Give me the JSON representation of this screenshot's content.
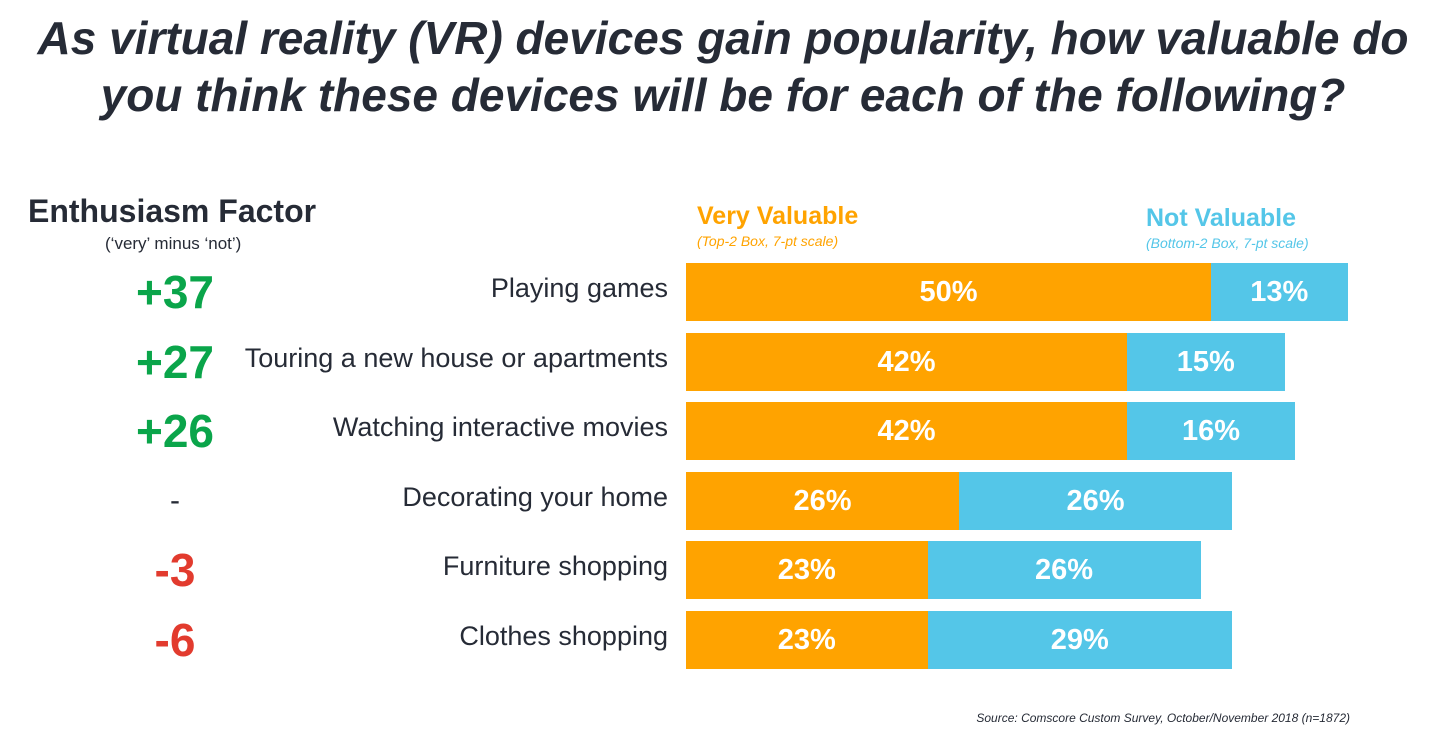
{
  "title": "As virtual reality (VR) devices gain popularity, how valuable do you think these devices will be for each of the following?",
  "enthusiasm": {
    "title": "Enthusiasm Factor",
    "subtitle": "(‘very’ minus ‘not’)"
  },
  "legend": {
    "very": {
      "label": "Very Valuable",
      "note": "(Top-2 Box, 7-pt scale)"
    },
    "not": {
      "label": "Not Valuable",
      "note": "(Bottom-2 Box, 7-pt scale)"
    }
  },
  "source": "Source: Comscore Custom Survey, October/November 2018 (n=1872)",
  "colors": {
    "very": "#ffa300",
    "not": "#54c6e8",
    "positive": "#0aa54a",
    "negative": "#e23b2e",
    "neutral": "#262b36"
  },
  "chart_data": {
    "type": "bar",
    "orientation": "horizontal",
    "stacked": true,
    "categories": [
      "Playing games",
      "Touring a new house or apartments",
      "Watching interactive movies",
      "Decorating your home",
      "Furniture shopping",
      "Clothes shopping"
    ],
    "series": [
      {
        "name": "Very Valuable",
        "values": [
          50,
          42,
          42,
          26,
          23,
          23
        ],
        "labels": [
          "50%",
          "42%",
          "42%",
          "26%",
          "23%",
          "23%"
        ]
      },
      {
        "name": "Not Valuable",
        "values": [
          13,
          15,
          16,
          26,
          26,
          29
        ],
        "labels": [
          "13%",
          "15%",
          "16%",
          "26%",
          "26%",
          "29%"
        ]
      }
    ],
    "enthusiasm_factor": [
      "+37",
      "+27",
      "+26",
      "-",
      "-3",
      "-6"
    ]
  }
}
